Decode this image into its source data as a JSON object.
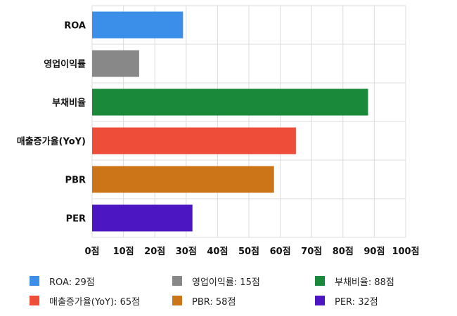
{
  "chart_data": {
    "type": "bar",
    "orientation": "horizontal",
    "categories": [
      "ROA",
      "영업이익률",
      "부채비율",
      "매출증가율(YoY)",
      "PBR",
      "PER"
    ],
    "values": [
      29,
      15,
      88,
      65,
      58,
      32
    ],
    "colors": [
      "#3b8fe8",
      "#888888",
      "#1a8a3a",
      "#ee4d3a",
      "#cc7418",
      "#4c17c2"
    ],
    "xlim": [
      0,
      100
    ],
    "x_ticks": [
      0,
      10,
      20,
      30,
      40,
      50,
      60,
      70,
      80,
      90,
      100
    ],
    "tick_suffix": "점",
    "grid": true,
    "legend_position": "bottom",
    "legend": [
      "ROA: 29점",
      "영업이익률: 15점",
      "부채비율: 88점",
      "매출증가율(YoY): 65점",
      "PBR: 58점",
      "PER: 32점"
    ]
  }
}
